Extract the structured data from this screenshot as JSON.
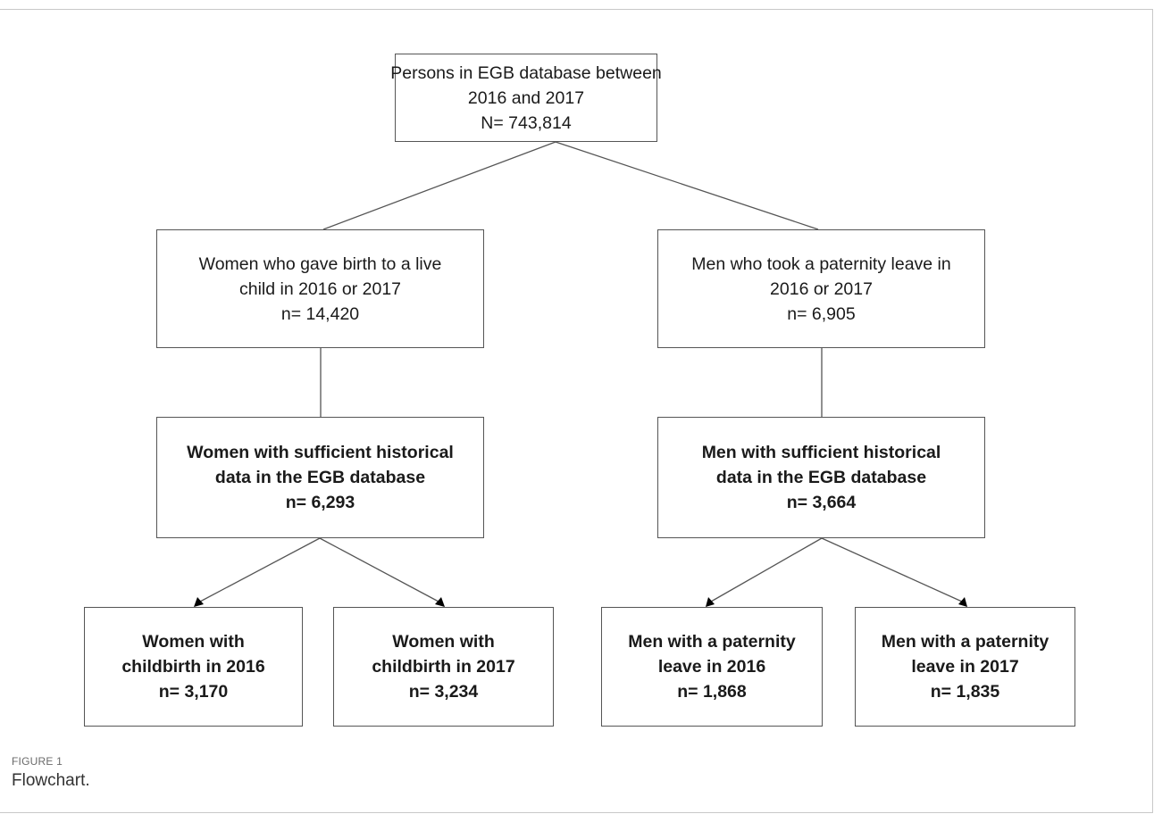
{
  "figure": {
    "label": "FIGURE 1",
    "caption": "Flowchart."
  },
  "nodes": {
    "top": {
      "lines": [
        "Persons in EGB database between",
        "2016 and 2017",
        "N= 743,814"
      ]
    },
    "women": {
      "lines": [
        "Women who gave birth to a live",
        "child in 2016 or 2017",
        "n= 14,420"
      ]
    },
    "men": {
      "lines": [
        "Men who took a paternity leave in",
        "2016 or 2017",
        "n= 6,905"
      ]
    },
    "women_hist": {
      "lines": [
        "Women with sufficient historical",
        "data in the EGB database",
        "n= 6,293"
      ]
    },
    "men_hist": {
      "lines": [
        "Men with sufficient historical",
        "data in the EGB database",
        "n= 3,664"
      ]
    },
    "women_2016": {
      "lines": [
        "Women with",
        "childbirth in 2016",
        "n= 3,170"
      ]
    },
    "women_2017": {
      "lines": [
        "Women with",
        "childbirth in 2017",
        "n= 3,234"
      ]
    },
    "men_2016": {
      "lines": [
        "Men with a paternity",
        "leave in 2016",
        "n= 1,868"
      ]
    },
    "men_2017": {
      "lines": [
        "Men with a paternity",
        "leave in 2017",
        "n= 1,835"
      ]
    }
  }
}
